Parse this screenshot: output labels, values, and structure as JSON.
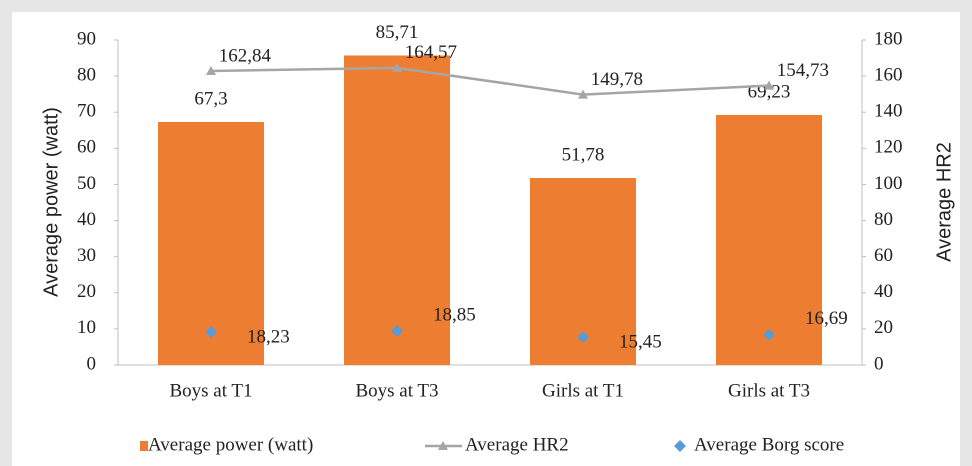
{
  "chart_data": {
    "type": "bar",
    "categories": [
      "Boys at T1",
      "Boys at T3",
      "Girls at T1",
      "Girls at T3"
    ],
    "ylabel": "Average power (watt)",
    "y2label": "Average HR2",
    "ylim": [
      0,
      90
    ],
    "yticks": [
      0,
      10,
      20,
      30,
      40,
      50,
      60,
      70,
      80,
      90
    ],
    "y2lim": [
      0,
      180
    ],
    "y2ticks": [
      0,
      20,
      40,
      60,
      80,
      100,
      120,
      140,
      160,
      180
    ],
    "legend": "bottom",
    "series": [
      {
        "name": "Average power (watt)",
        "type": "bar",
        "color": "#ed7d31",
        "values": [
          67.3,
          85.71,
          51.78,
          69.23
        ],
        "value_labels": [
          "67,3",
          "85,71",
          "51,78",
          "69,23"
        ]
      },
      {
        "name": "Average HR2",
        "type": "line",
        "axis": "y2",
        "color": "#a5a5a5",
        "values": [
          162.84,
          164.57,
          149.78,
          154.73
        ],
        "value_labels": [
          "162,84",
          "164,57",
          "149,78",
          "154,73"
        ]
      },
      {
        "name": "Average Borg score",
        "type": "scatter",
        "axis": "y2",
        "color": "#5b9bd5",
        "values": [
          18.23,
          18.85,
          15.45,
          16.69
        ],
        "value_labels": [
          "18,23",
          "18,85",
          "15,45",
          "16,69"
        ]
      }
    ]
  }
}
